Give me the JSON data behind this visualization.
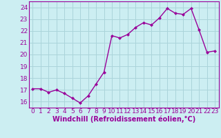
{
  "x": [
    0,
    1,
    2,
    3,
    4,
    5,
    6,
    7,
    8,
    9,
    10,
    11,
    12,
    13,
    14,
    15,
    16,
    17,
    18,
    19,
    20,
    21,
    22,
    23
  ],
  "y": [
    17.1,
    17.1,
    16.8,
    17.0,
    16.7,
    16.3,
    15.9,
    16.5,
    17.5,
    18.5,
    21.6,
    21.4,
    21.7,
    22.3,
    22.7,
    22.5,
    23.1,
    23.9,
    23.5,
    23.4,
    23.9,
    22.1,
    20.2,
    20.3
  ],
  "line_color": "#990099",
  "marker": "D",
  "marker_size": 2,
  "bg_color": "#cceef2",
  "grid_color": "#aad4da",
  "axis_color": "#990099",
  "xlabel": "Windchill (Refroidissement éolien,°C)",
  "ylim": [
    15.5,
    24.5
  ],
  "xlim": [
    -0.5,
    23.5
  ],
  "yticks": [
    16,
    17,
    18,
    19,
    20,
    21,
    22,
    23,
    24
  ],
  "xticks": [
    0,
    1,
    2,
    3,
    4,
    5,
    6,
    7,
    8,
    9,
    10,
    11,
    12,
    13,
    14,
    15,
    16,
    17,
    18,
    19,
    20,
    21,
    22,
    23
  ],
  "tick_font_size": 6.5,
  "label_font_size": 7,
  "linewidth": 1.0
}
